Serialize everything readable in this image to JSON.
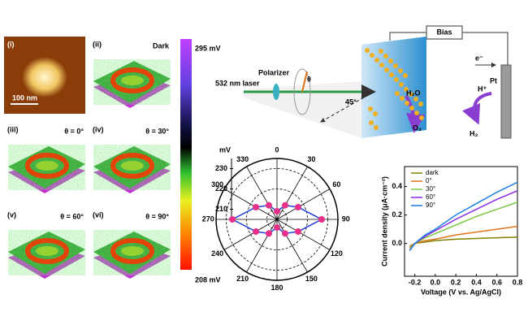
{
  "images": [
    {
      "label": "(i)",
      "scale_bar": "100 nm"
    },
    {
      "label": "(ii)",
      "condition": "Dark"
    },
    {
      "label": "(iii)",
      "condition": "θ = 0°"
    },
    {
      "label": "(iv)",
      "condition": "θ = 30°"
    },
    {
      "label": "(v)",
      "condition": "θ = 60°"
    },
    {
      "label": "(vi)",
      "condition": "θ = 90°"
    }
  ],
  "colorbar": {
    "max_label": "295 mV",
    "min_label": "208 mV"
  },
  "schematic": {
    "bias": "Bias",
    "electron": "e⁻",
    "counter_electrode": "Pt",
    "proton": "H⁺",
    "hydrogen": "H₂",
    "water": "H₂O",
    "oxygen": "O₂",
    "laser": "532 nm laser",
    "polarizer": "Polarizer",
    "angle": "θ",
    "incidence": "45°"
  },
  "chart_data": [
    {
      "type": "polar",
      "r_label": "mV",
      "theta": [
        0,
        30,
        60,
        90,
        120,
        150,
        180,
        210,
        240,
        270,
        300,
        330
      ],
      "values": [
        209,
        213,
        217,
        227,
        217,
        213,
        209,
        213,
        217,
        227,
        217,
        213
      ],
      "rlim": [
        205,
        235
      ],
      "rticks": [
        210,
        220,
        230
      ],
      "color": "#e8308a",
      "line_color": "#1f3fd8"
    },
    {
      "type": "line",
      "xlabel": "Voltage (V vs. Ag/AgCl)",
      "ylabel": "Current density (μA·cm⁻²)",
      "x": [
        -0.25,
        -0.2,
        -0.1,
        0,
        0.2,
        0.4,
        0.6,
        0.8
      ],
      "series": [
        {
          "name": "dark",
          "color": "#808000",
          "values": [
            -0.02,
            0,
            0.01,
            0.02,
            0.03,
            0.035,
            0.04,
            0.045
          ]
        },
        {
          "name": "0°",
          "color": "#e0741c",
          "values": [
            -0.03,
            0,
            0.02,
            0.03,
            0.06,
            0.08,
            0.1,
            0.12
          ]
        },
        {
          "name": "30°",
          "color": "#7ac943",
          "values": [
            -0.04,
            0,
            0.04,
            0.07,
            0.13,
            0.19,
            0.24,
            0.29
          ]
        },
        {
          "name": "60°",
          "color": "#8a2be2",
          "values": [
            -0.05,
            0,
            0.05,
            0.09,
            0.17,
            0.24,
            0.31,
            0.37
          ]
        },
        {
          "name": "90°",
          "color": "#1e7fe0",
          "values": [
            -0.05,
            0,
            0.06,
            0.1,
            0.2,
            0.28,
            0.36,
            0.43
          ]
        }
      ],
      "xlim": [
        -0.3,
        0.8
      ],
      "xticks": [
        {
          "value": -0.2,
          "label": "-0.2"
        },
        {
          "value": 0,
          "label": "0.0"
        },
        {
          "value": 0.2,
          "label": "0.2"
        },
        {
          "value": 0.4,
          "label": "0.4"
        },
        {
          "value": 0.6,
          "label": "0.6"
        },
        {
          "value": 0.8,
          "label": "0.8"
        }
      ],
      "ylim": [
        -0.23,
        0.54
      ],
      "yticks": [
        {
          "value": 0,
          "label": "0.0"
        },
        {
          "value": 0.2,
          "label": "0.2"
        },
        {
          "value": 0.4,
          "label": "0.4"
        }
      ],
      "legend": "upper left"
    }
  ]
}
